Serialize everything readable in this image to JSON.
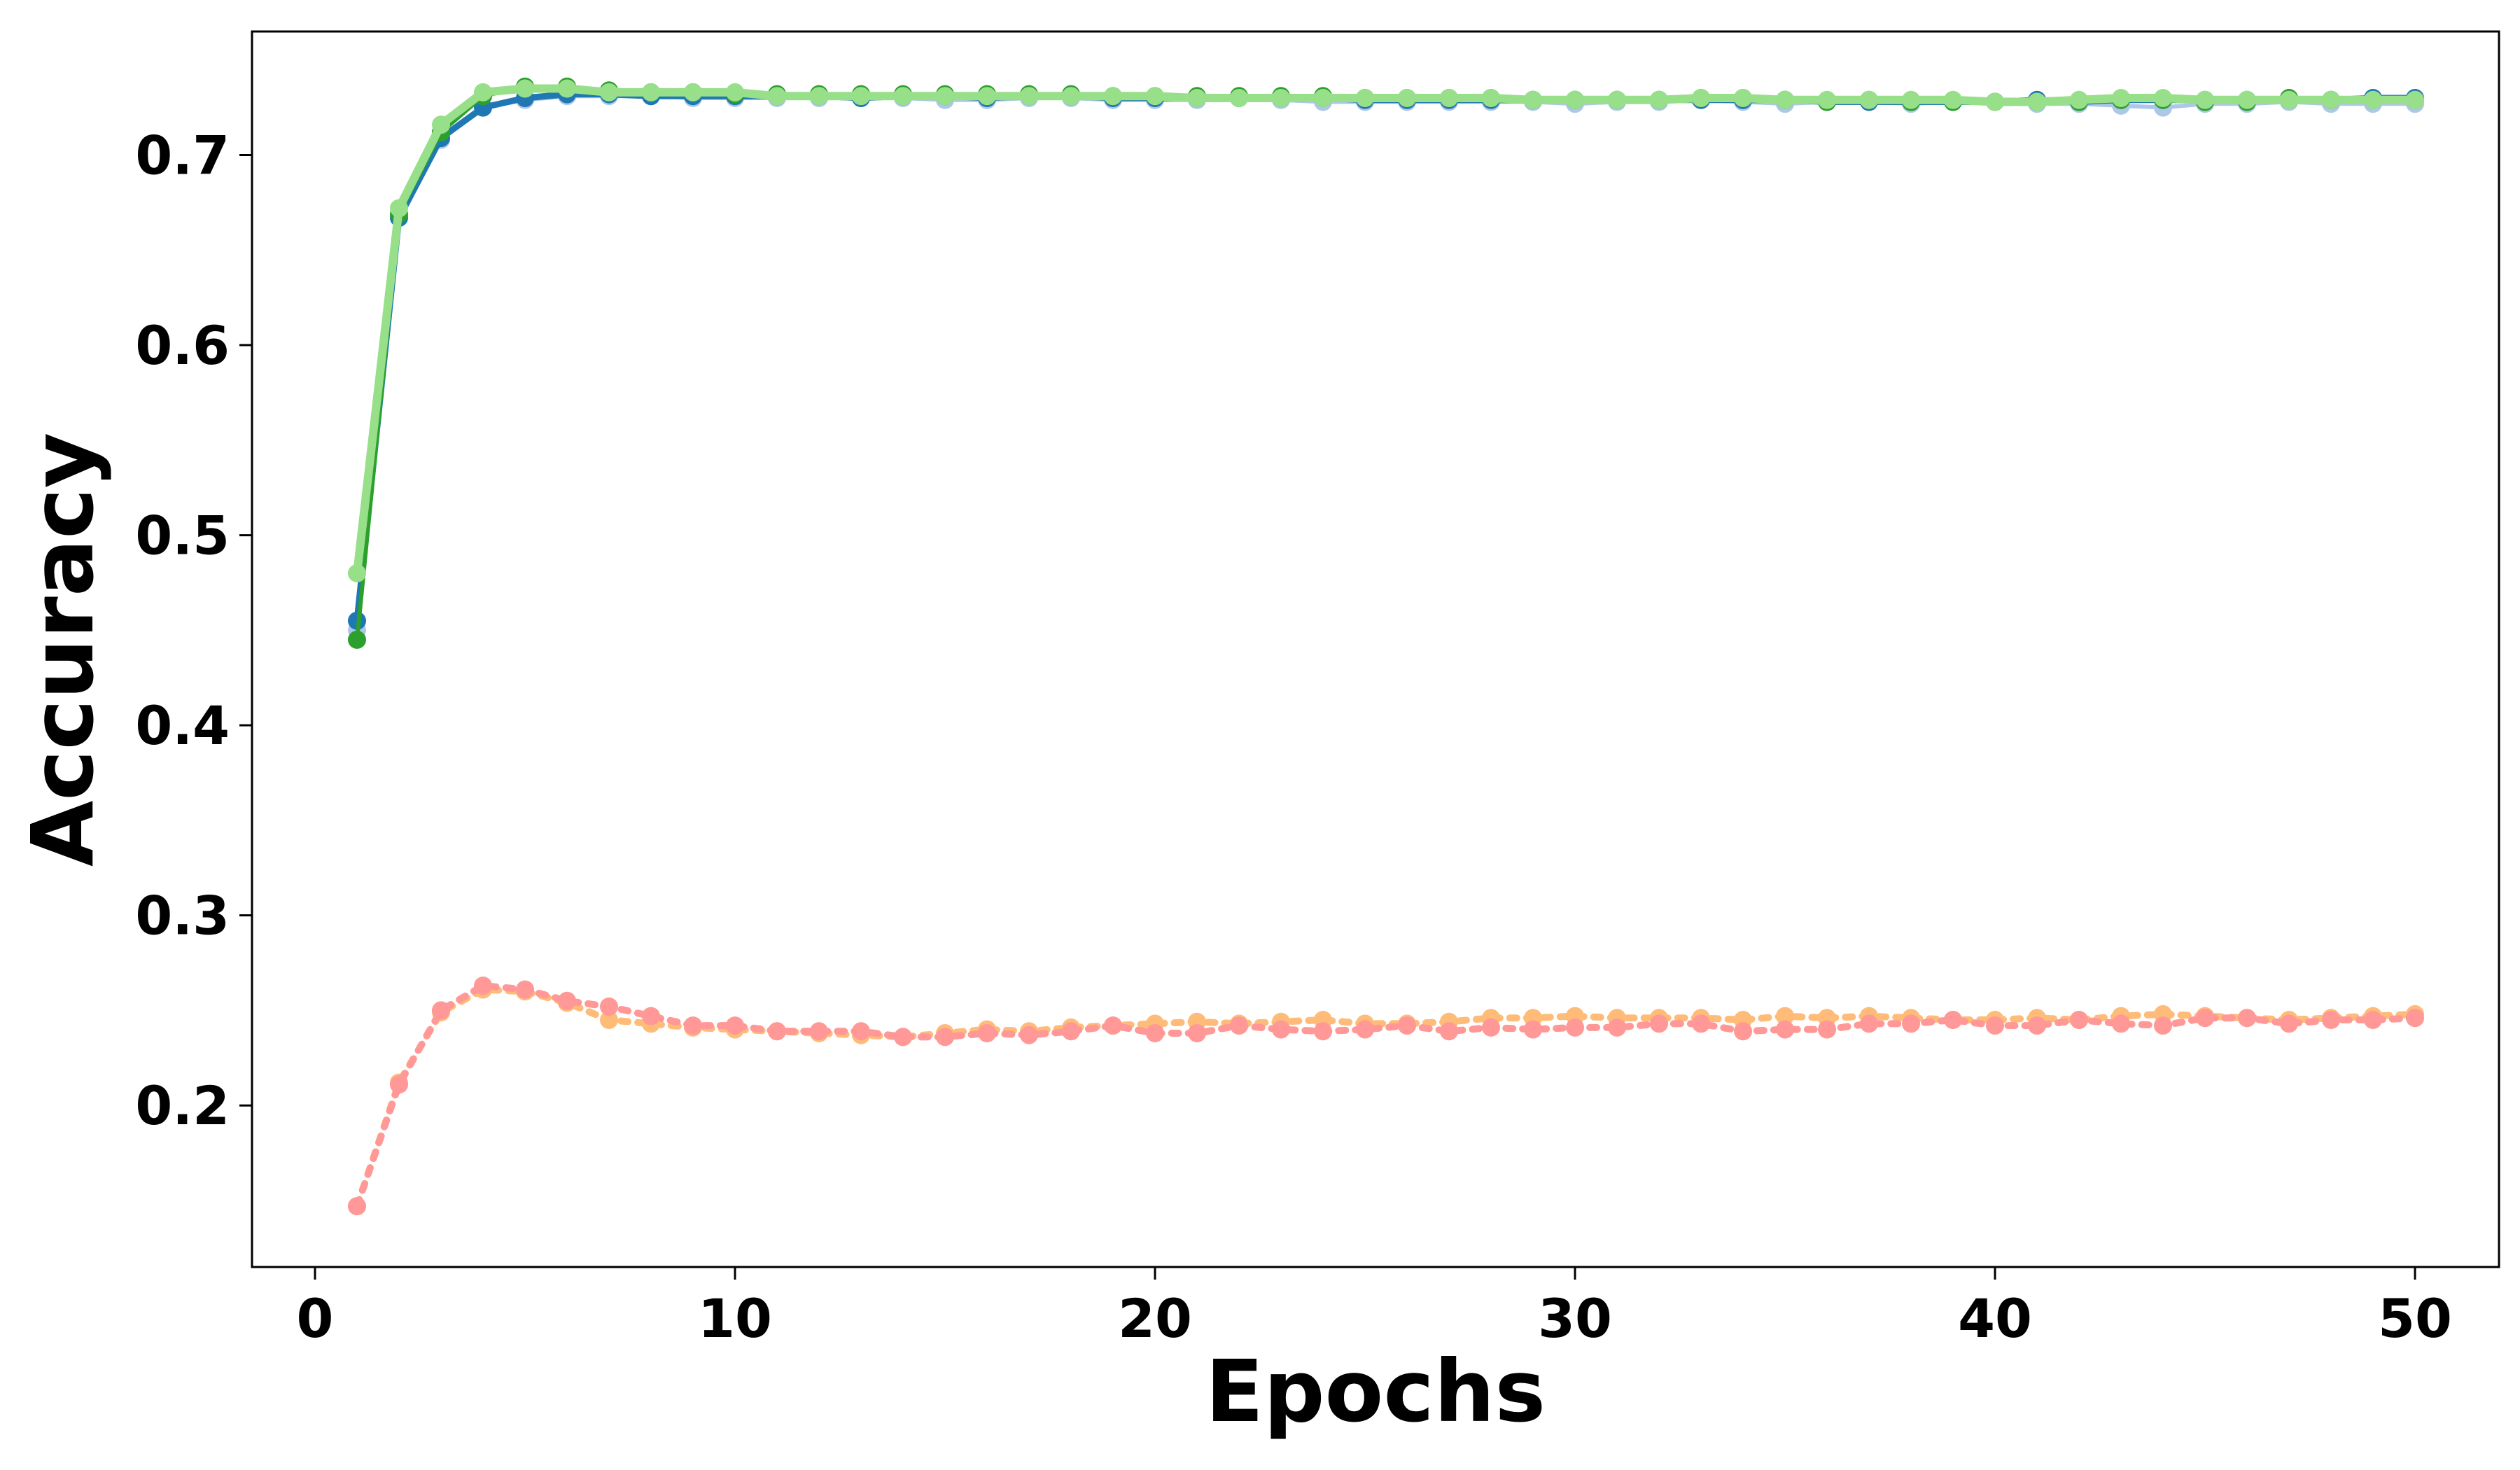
{
  "chart_data": {
    "type": "line",
    "xlabel": "Epochs",
    "ylabel": "Accuracy",
    "xlim": [
      -1.5,
      52
    ],
    "ylim": [
      0.115,
      0.765
    ],
    "xticks": [
      {
        "value": 0,
        "label": "0"
      },
      {
        "value": 10,
        "label": "10"
      },
      {
        "value": 20,
        "label": "20"
      },
      {
        "value": 30,
        "label": "30"
      },
      {
        "value": 40,
        "label": "40"
      },
      {
        "value": 50,
        "label": "50"
      }
    ],
    "yticks": [
      {
        "value": 0.2,
        "label": "0.2"
      },
      {
        "value": 0.3,
        "label": "0.3"
      },
      {
        "value": 0.4,
        "label": "0.4"
      },
      {
        "value": 0.5,
        "label": "0.5"
      },
      {
        "value": 0.6,
        "label": "0.6"
      },
      {
        "value": 0.7,
        "label": "0.7"
      }
    ],
    "grid": false,
    "legend": "none",
    "x": [
      1,
      2,
      3,
      4,
      5,
      6,
      7,
      8,
      9,
      10,
      11,
      12,
      13,
      14,
      15,
      16,
      17,
      18,
      19,
      20,
      21,
      22,
      23,
      24,
      25,
      26,
      27,
      28,
      29,
      30,
      31,
      32,
      33,
      34,
      35,
      36,
      37,
      38,
      39,
      40,
      41,
      42,
      43,
      44,
      45,
      46,
      47,
      48,
      49,
      50
    ],
    "series": [
      {
        "color": "#aec7e8",
        "style": "solid",
        "width": 6,
        "values": [
          0.45,
          0.668,
          0.708,
          0.725,
          0.729,
          0.731,
          0.731,
          0.731,
          0.73,
          0.73,
          0.73,
          0.73,
          0.73,
          0.73,
          0.729,
          0.729,
          0.73,
          0.73,
          0.729,
          0.729,
          0.729,
          0.73,
          0.729,
          0.728,
          0.728,
          0.728,
          0.728,
          0.728,
          0.728,
          0.727,
          0.728,
          0.728,
          0.729,
          0.728,
          0.727,
          0.728,
          0.728,
          0.727,
          0.728,
          0.728,
          0.727,
          0.727,
          0.726,
          0.725,
          0.727,
          0.727,
          0.728,
          0.727,
          0.727,
          0.727
        ]
      },
      {
        "color": "#1f77b4",
        "style": "solid",
        "width": 9,
        "values": [
          0.455,
          0.667,
          0.709,
          0.725,
          0.73,
          0.732,
          0.732,
          0.731,
          0.731,
          0.731,
          0.731,
          0.731,
          0.73,
          0.731,
          0.731,
          0.73,
          0.731,
          0.731,
          0.73,
          0.73,
          0.73,
          0.73,
          0.73,
          0.73,
          0.729,
          0.729,
          0.729,
          0.729,
          0.729,
          0.729,
          0.729,
          0.729,
          0.729,
          0.729,
          0.729,
          0.728,
          0.728,
          0.728,
          0.728,
          0.728,
          0.729,
          0.728,
          0.729,
          0.729,
          0.729,
          0.729,
          0.729,
          0.729,
          0.73,
          0.73
        ]
      },
      {
        "color": "#2ca02c",
        "style": "solid",
        "width": 6,
        "values": [
          0.445,
          0.669,
          0.712,
          0.731,
          0.736,
          0.736,
          0.734,
          0.733,
          0.733,
          0.732,
          0.732,
          0.732,
          0.732,
          0.732,
          0.732,
          0.732,
          0.732,
          0.732,
          0.731,
          0.731,
          0.731,
          0.731,
          0.731,
          0.731,
          0.73,
          0.73,
          0.73,
          0.73,
          0.729,
          0.729,
          0.729,
          0.729,
          0.73,
          0.73,
          0.729,
          0.728,
          0.729,
          0.728,
          0.728,
          0.728,
          0.728,
          0.728,
          0.729,
          0.729,
          0.728,
          0.728,
          0.73,
          0.729,
          0.729,
          0.729
        ]
      },
      {
        "color": "#98df8a",
        "style": "solid",
        "width": 12,
        "values": [
          0.48,
          0.672,
          0.716,
          0.733,
          0.735,
          0.735,
          0.733,
          0.733,
          0.733,
          0.733,
          0.731,
          0.731,
          0.731,
          0.731,
          0.731,
          0.731,
          0.731,
          0.731,
          0.731,
          0.731,
          0.73,
          0.73,
          0.73,
          0.73,
          0.73,
          0.73,
          0.73,
          0.73,
          0.729,
          0.729,
          0.729,
          0.729,
          0.73,
          0.73,
          0.729,
          0.729,
          0.729,
          0.729,
          0.729,
          0.728,
          0.728,
          0.729,
          0.73,
          0.73,
          0.729,
          0.729,
          0.729,
          0.729,
          0.729,
          0.729
        ]
      },
      {
        "color": "#ffbb78",
        "style": "dotted",
        "width": 10,
        "values": [
          0.147,
          0.212,
          0.249,
          0.261,
          0.26,
          0.254,
          0.245,
          0.243,
          0.241,
          0.24,
          0.239,
          0.238,
          0.237,
          0.236,
          0.238,
          0.24,
          0.239,
          0.241,
          0.242,
          0.243,
          0.244,
          0.243,
          0.244,
          0.245,
          0.243,
          0.243,
          0.244,
          0.246,
          0.246,
          0.247,
          0.246,
          0.246,
          0.246,
          0.245,
          0.247,
          0.246,
          0.247,
          0.246,
          0.245,
          0.245,
          0.246,
          0.245,
          0.247,
          0.248,
          0.247,
          0.246,
          0.245,
          0.246,
          0.247,
          0.248
        ]
      },
      {
        "color": "#ff9896",
        "style": "dotted",
        "width": 10,
        "values": [
          0.147,
          0.211,
          0.25,
          0.263,
          0.261,
          0.255,
          0.252,
          0.247,
          0.242,
          0.242,
          0.239,
          0.239,
          0.239,
          0.236,
          0.236,
          0.238,
          0.237,
          0.239,
          0.242,
          0.238,
          0.238,
          0.242,
          0.24,
          0.239,
          0.24,
          0.242,
          0.239,
          0.241,
          0.24,
          0.241,
          0.241,
          0.243,
          0.243,
          0.239,
          0.24,
          0.24,
          0.243,
          0.243,
          0.245,
          0.242,
          0.242,
          0.245,
          0.243,
          0.242,
          0.246,
          0.246,
          0.243,
          0.245,
          0.245,
          0.246
        ]
      }
    ]
  }
}
